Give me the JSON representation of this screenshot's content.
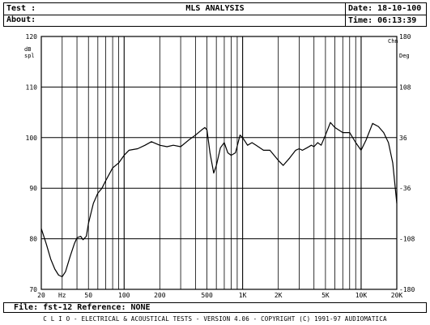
{
  "header": {
    "test_label": "Test :",
    "about_label": "About:",
    "title": "MLS ANALYSIS",
    "date": "Date: 18-10-100",
    "time": "Time: 06:13:39"
  },
  "footer": {
    "file_line": "File: fst-12    Reference: NONE",
    "credit_line": "C L I O  -  ELECTRICAL & ACOUSTICAL TESTS  -  VERSION 4.06  -  COPYRIGHT (C) 1991-97 AUDIOMATICA"
  },
  "chart_data": {
    "type": "line",
    "xscale": "log",
    "xlim": [
      20,
      20000
    ],
    "ylim": [
      70,
      120
    ],
    "y2lim": [
      -180,
      180
    ],
    "grid": true,
    "ylabel": "dB\nspl",
    "y2label": "Deg",
    "legend_mark": "Chn",
    "yticks": [
      "120",
      "110",
      "100",
      "90",
      "80",
      "70"
    ],
    "y2ticks": [
      "180",
      "108",
      "36",
      "-36",
      "-108",
      "-180"
    ],
    "xticks": [
      {
        "v": 20,
        "label": "20"
      },
      {
        "v": 30,
        "label": "Hz"
      },
      {
        "v": 50,
        "label": "50"
      },
      {
        "v": 100,
        "label": "100"
      },
      {
        "v": 200,
        "label": "200"
      },
      {
        "v": 500,
        "label": "500"
      },
      {
        "v": 1000,
        "label": "1K"
      },
      {
        "v": 2000,
        "label": "2K"
      },
      {
        "v": 5000,
        "label": "5K"
      },
      {
        "v": 10000,
        "label": "10K"
      },
      {
        "v": 20000,
        "label": "20K"
      }
    ],
    "series": [
      {
        "points": [
          [
            20,
            82
          ],
          [
            22,
            79
          ],
          [
            24,
            76
          ],
          [
            26,
            74
          ],
          [
            28,
            72.8
          ],
          [
            30,
            72.5
          ],
          [
            32,
            73.5
          ],
          [
            35,
            76.5
          ],
          [
            38,
            79
          ],
          [
            40,
            80.2
          ],
          [
            43,
            80.5
          ],
          [
            45,
            79.8
          ],
          [
            48,
            80.5
          ],
          [
            50,
            83
          ],
          [
            55,
            87
          ],
          [
            60,
            89
          ],
          [
            65,
            90
          ],
          [
            70,
            91.5
          ],
          [
            80,
            94
          ],
          [
            90,
            95
          ],
          [
            100,
            96.5
          ],
          [
            110,
            97.5
          ],
          [
            130,
            97.8
          ],
          [
            150,
            98.5
          ],
          [
            170,
            99.2
          ],
          [
            200,
            98.5
          ],
          [
            230,
            98.2
          ],
          [
            260,
            98.5
          ],
          [
            300,
            98.2
          ],
          [
            350,
            99.5
          ],
          [
            400,
            100.5
          ],
          [
            450,
            101.5
          ],
          [
            480,
            102
          ],
          [
            500,
            101.5
          ],
          [
            530,
            97
          ],
          [
            570,
            93
          ],
          [
            600,
            94.5
          ],
          [
            650,
            98
          ],
          [
            700,
            99
          ],
          [
            750,
            97
          ],
          [
            800,
            96.5
          ],
          [
            870,
            97
          ],
          [
            950,
            100.5
          ],
          [
            1000,
            100
          ],
          [
            1100,
            98.5
          ],
          [
            1200,
            99
          ],
          [
            1300,
            98.5
          ],
          [
            1500,
            97.5
          ],
          [
            1700,
            97.5
          ],
          [
            2000,
            95.5
          ],
          [
            2200,
            94.5
          ],
          [
            2500,
            96
          ],
          [
            2800,
            97.5
          ],
          [
            3000,
            97.8
          ],
          [
            3200,
            97.5
          ],
          [
            3500,
            98
          ],
          [
            3800,
            98.5
          ],
          [
            4000,
            98.2
          ],
          [
            4300,
            99
          ],
          [
            4600,
            98.5
          ],
          [
            5000,
            100.5
          ],
          [
            5500,
            103
          ],
          [
            6000,
            102
          ],
          [
            7000,
            101
          ],
          [
            8000,
            101
          ],
          [
            9000,
            99
          ],
          [
            10000,
            97.5
          ],
          [
            11000,
            99.5
          ],
          [
            12500,
            102.8
          ],
          [
            14000,
            102.2
          ],
          [
            15500,
            101
          ],
          [
            17000,
            99
          ],
          [
            18500,
            95
          ],
          [
            20000,
            87
          ]
        ]
      }
    ]
  }
}
